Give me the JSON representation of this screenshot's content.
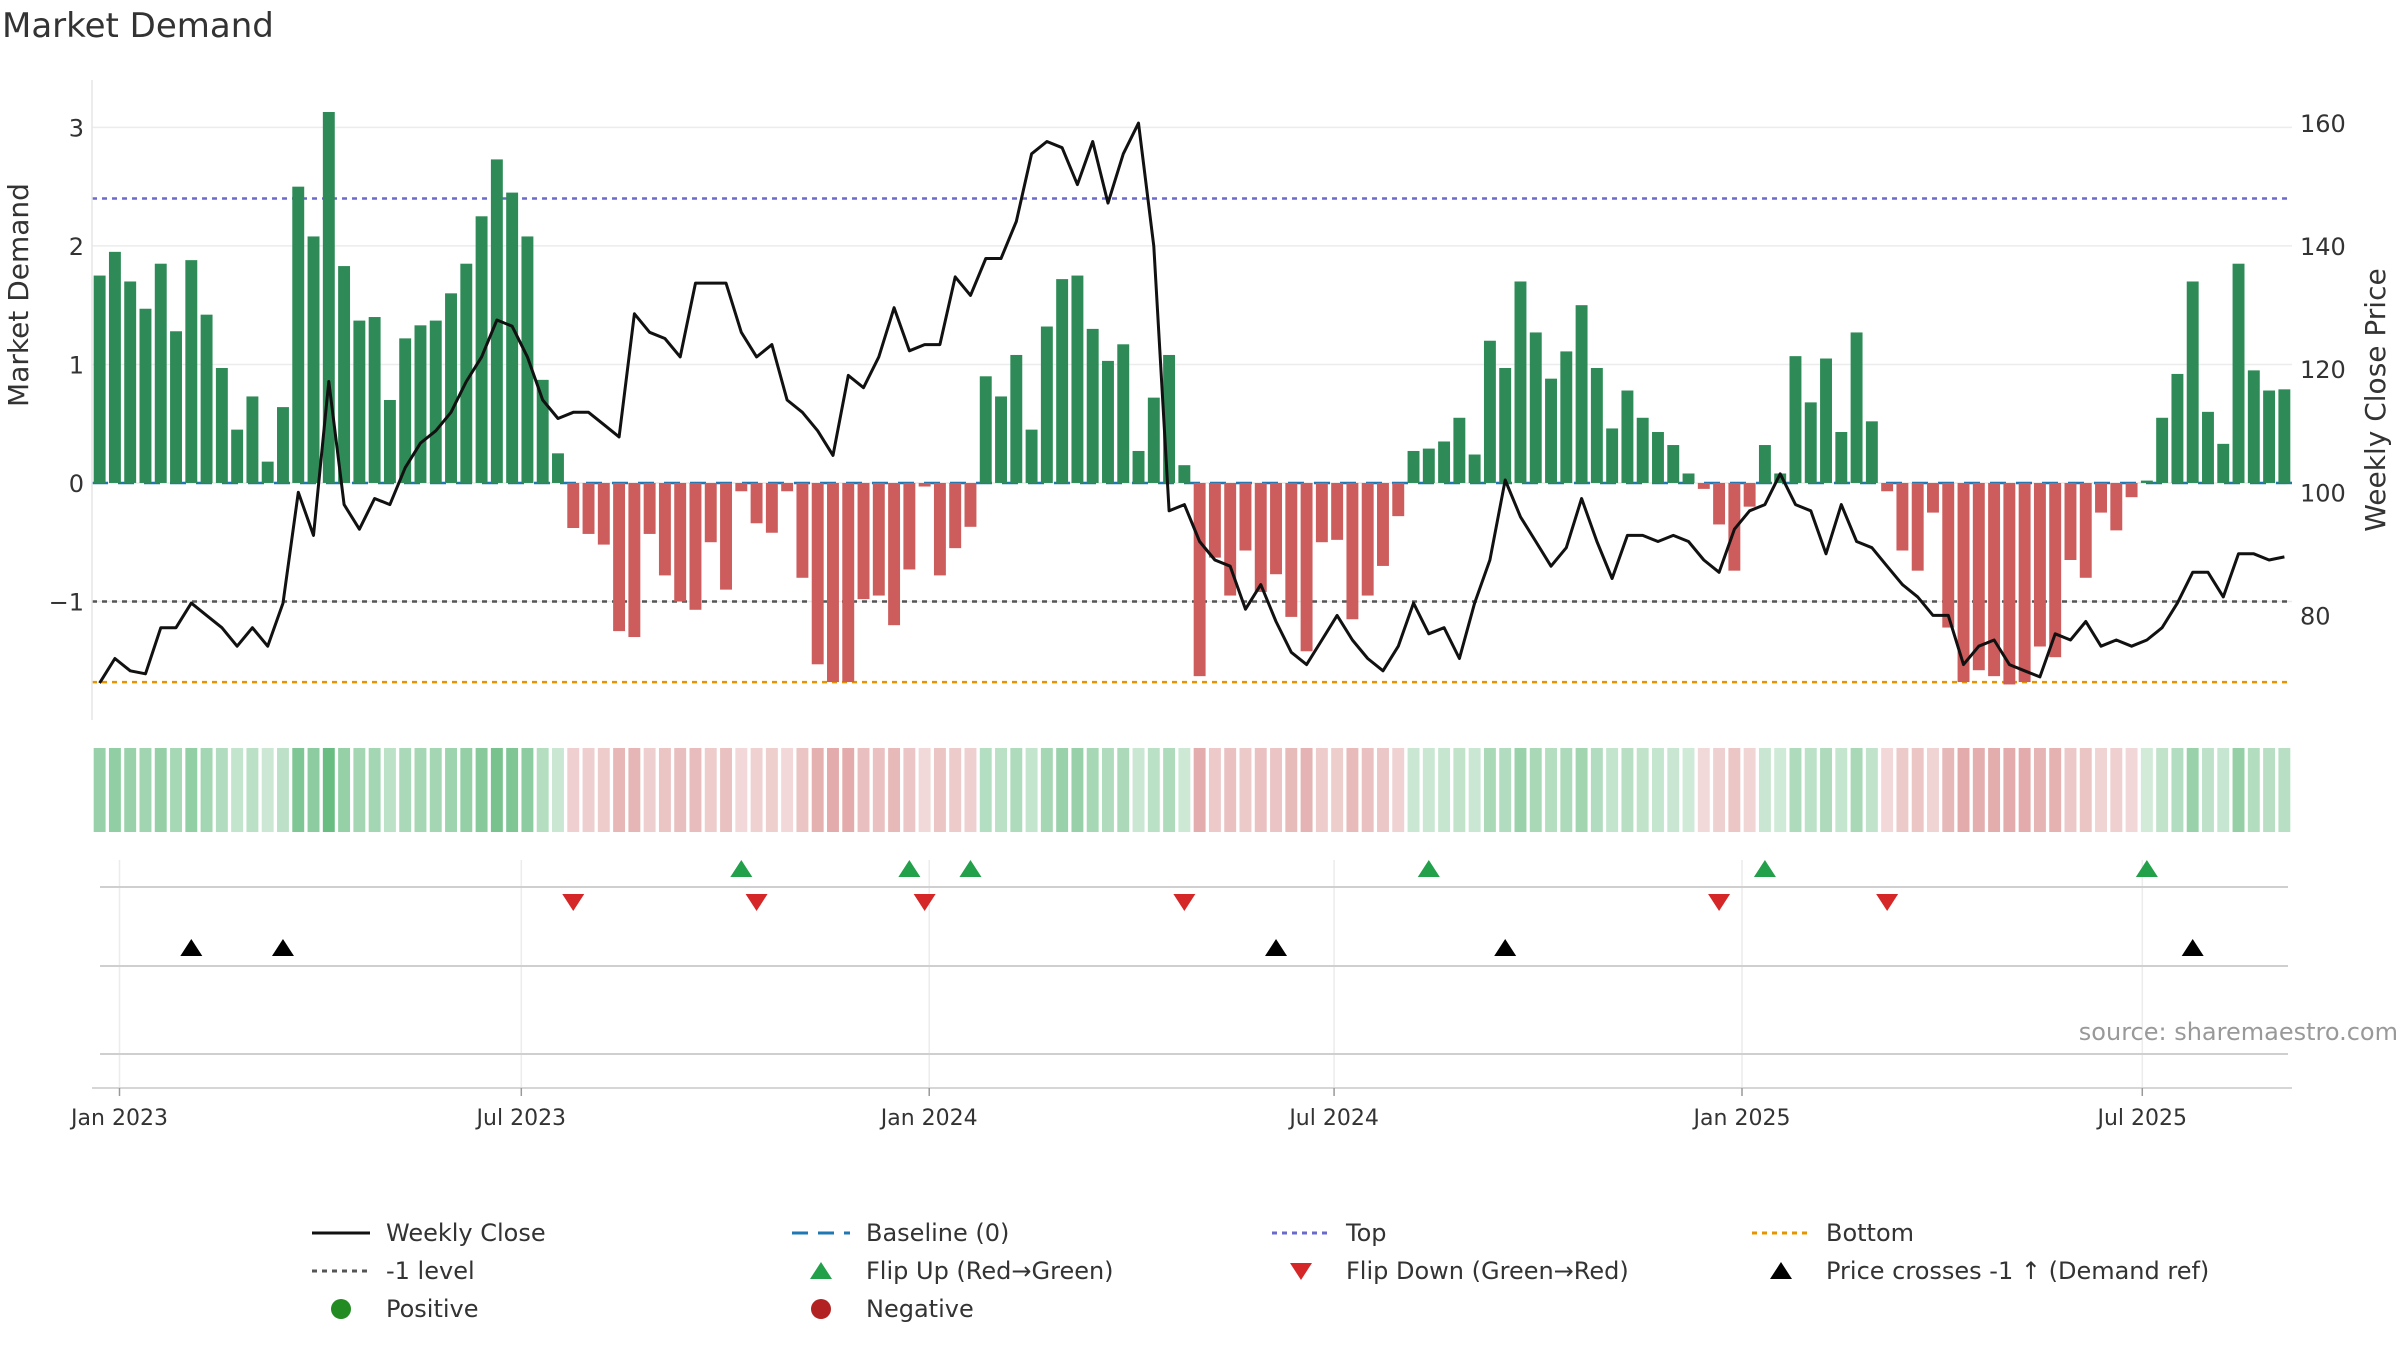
{
  "chart_data": {
    "type": "bar",
    "title": "Market Demand",
    "source_text": "source: sharemaestro.com",
    "ylabel_left": "Market Demand",
    "ylabel_right": "Weekly Close Price",
    "ylim_left": [
      -2.0,
      3.4
    ],
    "ylim_right": [
      63,
      167
    ],
    "yticks_left": [
      3,
      2,
      1,
      0,
      -1
    ],
    "ytick_labels_left": [
      "3",
      "2",
      "1",
      "0",
      "−1"
    ],
    "yticks_right": [
      160,
      140,
      120,
      100,
      80
    ],
    "ytick_labels_right": [
      "160",
      "140",
      "120",
      "100",
      "80"
    ],
    "x_months": [
      "Jan 2023",
      "Jul 2023",
      "Jan 2024",
      "Jul 2024",
      "Jan 2025",
      "Jul 2025"
    ],
    "x_month_index": [
      1.8,
      28.1,
      54.8,
      81.3,
      108.0,
      134.2
    ],
    "reference_lines": {
      "top": 2.4,
      "bottom": -1.68,
      "level": -1.0,
      "baseline": 0.0
    },
    "demand_values": [
      1.75,
      1.95,
      1.7,
      1.47,
      1.85,
      1.28,
      1.88,
      1.42,
      0.97,
      0.45,
      0.73,
      0.18,
      0.64,
      2.5,
      2.08,
      3.13,
      1.83,
      1.37,
      1.4,
      0.7,
      1.22,
      1.33,
      1.37,
      1.6,
      1.85,
      2.25,
      2.73,
      2.45,
      2.08,
      0.87,
      0.25,
      -0.38,
      -0.43,
      -0.52,
      -1.25,
      -1.3,
      -0.43,
      -0.78,
      -1.0,
      -1.07,
      -0.5,
      -0.9,
      -0.07,
      -0.34,
      -0.42,
      -0.07,
      -0.8,
      -1.53,
      -1.68,
      -1.68,
      -0.98,
      -0.95,
      -1.2,
      -0.73,
      -0.03,
      -0.78,
      -0.55,
      -0.37,
      0.9,
      0.73,
      1.08,
      0.45,
      1.32,
      1.72,
      1.75,
      1.3,
      1.03,
      1.17,
      0.27,
      0.72,
      1.08,
      0.15,
      -1.63,
      -0.63,
      -0.95,
      -0.57,
      -0.92,
      -0.77,
      -1.13,
      -1.42,
      -0.5,
      -0.48,
      -1.15,
      -0.95,
      -0.7,
      -0.28,
      0.27,
      0.29,
      0.35,
      0.55,
      0.24,
      1.2,
      0.97,
      1.7,
      1.27,
      0.88,
      1.11,
      1.5,
      0.97,
      0.46,
      0.78,
      0.55,
      0.43,
      0.32,
      0.08,
      -0.05,
      -0.35,
      -0.74,
      -0.2,
      0.32,
      0.08,
      1.07,
      0.68,
      1.05,
      0.43,
      1.27,
      0.52,
      -0.07,
      -0.57,
      -0.74,
      -0.25,
      -1.22,
      -1.68,
      -1.58,
      -1.63,
      -1.7,
      -1.68,
      -1.38,
      -1.47,
      -0.65,
      -0.8,
      -0.25,
      -0.4,
      -0.12,
      0.02,
      0.55,
      0.92,
      1.7,
      0.6,
      0.33,
      1.85,
      0.95,
      0.78,
      0.79
    ],
    "price_values": [
      69,
      73,
      71,
      70.5,
      78,
      78,
      82,
      80,
      78,
      75,
      78,
      75,
      82,
      100,
      93,
      118,
      98,
      94,
      99,
      98,
      104,
      108,
      110,
      113,
      118,
      122,
      128,
      127,
      122,
      115,
      112,
      113,
      113,
      111,
      109,
      129,
      126,
      125,
      122,
      134,
      134,
      134,
      126,
      122,
      124,
      115,
      113,
      110,
      106,
      119,
      117,
      122,
      130,
      123,
      124,
      124,
      135,
      132,
      138,
      138,
      144,
      155,
      157,
      156,
      150,
      157,
      147,
      155,
      160,
      140,
      97,
      98,
      92,
      89,
      88,
      81,
      85,
      79,
      74,
      72,
      76,
      80,
      76,
      73,
      71,
      75,
      82,
      77,
      78,
      73,
      82,
      89,
      102,
      96,
      92,
      88,
      91,
      99,
      92,
      86,
      93,
      93,
      92,
      93,
      92,
      89,
      87,
      94,
      97,
      98,
      103,
      98,
      97,
      90,
      98,
      92,
      91,
      88,
      85,
      83,
      80,
      80,
      72,
      75,
      76,
      72,
      71,
      70,
      77,
      76,
      79,
      75,
      76,
      75,
      76,
      78,
      82,
      87,
      87,
      83,
      90,
      90,
      89,
      89.5
    ],
    "flip_up_index": [
      42,
      53,
      57,
      87,
      109,
      134
    ],
    "flip_down_index": [
      31,
      43,
      54,
      71,
      106,
      117
    ],
    "price_cross_index": [
      6,
      12,
      77,
      92,
      137
    ],
    "legend": [
      "Weekly Close",
      "Baseline (0)",
      "Top",
      "Bottom",
      "-1 level",
      "Flip Up (Red→Green)",
      "Flip Down (Green→Red)",
      "Price crosses -1 ↑ (Demand ref)",
      "Positive",
      "Negative"
    ],
    "colors": {
      "positive": "#2e8b57",
      "negative": "#cd5c5c",
      "price": "#111111",
      "top": "#6a6acd",
      "bottom": "#e69500",
      "level": "#555555",
      "baseline": "#1f77b4",
      "flip_up": "#22a04a",
      "flip_down": "#d62728",
      "cross": "#000000",
      "positive_dot": "#228b22",
      "negative_dot": "#b22222"
    }
  }
}
